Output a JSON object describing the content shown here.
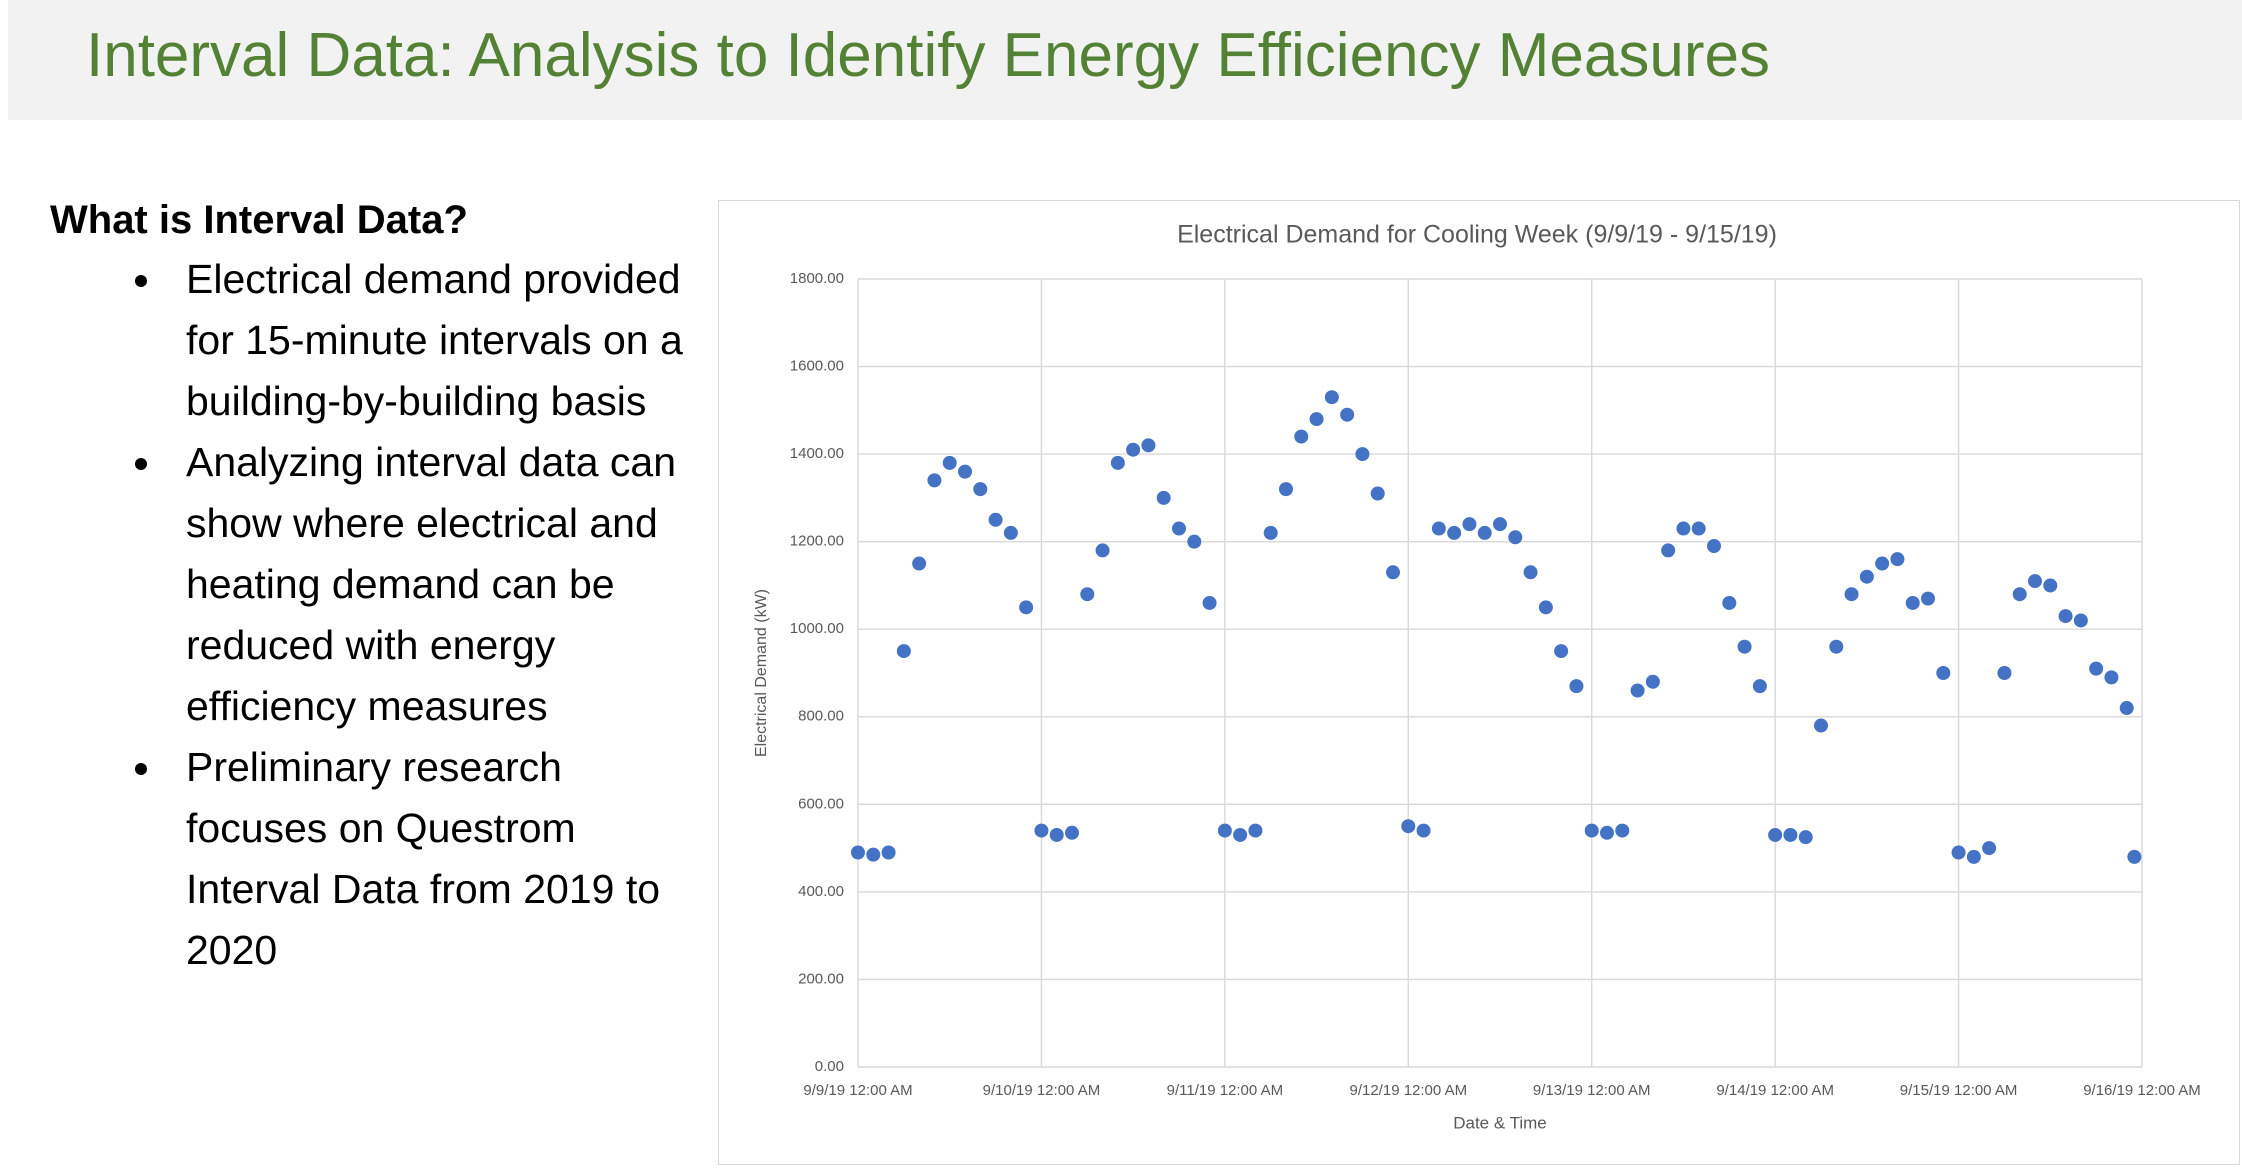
{
  "header": {
    "title": "Interval Data: Analysis to Identify Energy Efficiency Measures"
  },
  "body": {
    "heading": "What is Interval Data?",
    "bullets": [
      "Electrical demand provided for 15-minute intervals on a building-by-building basis",
      "Analyzing interval data can show where electrical and heating demand can be reduced with energy efficiency measures",
      "Preliminary research focuses on Questrom Interval Data from 2019 to 2020"
    ]
  },
  "chart_data": {
    "type": "scatter",
    "title": "Electrical Demand for Cooling Week (9/9/19 - 9/15/19)",
    "x_label": "Date & Time",
    "y_label": "Electrical Demand (kW)",
    "color": "#4472c4",
    "grid": true,
    "xlim": [
      "9/9/19 12:00 AM",
      "9/16/19 12:00 AM"
    ],
    "xticks": [
      "9/9/19 12:00 AM",
      "9/10/19 12:00 AM",
      "9/11/19 12:00 AM",
      "9/12/19 12:00 AM",
      "9/13/19 12:00 AM",
      "9/14/19 12:00 AM",
      "9/15/19 12:00 AM",
      "9/16/19 12:00 AM"
    ],
    "ylim": [
      0,
      1800
    ],
    "yticks": [
      {
        "value": 0,
        "label": "0.00"
      },
      {
        "value": 200,
        "label": "200.00"
      },
      {
        "value": 400,
        "label": "400.00"
      },
      {
        "value": 600,
        "label": "600.00"
      },
      {
        "value": 800,
        "label": "800.00"
      },
      {
        "value": 1000,
        "label": "1000.00"
      },
      {
        "value": 1200,
        "label": "1200.00"
      },
      {
        "value": 1400,
        "label": "1400.00"
      },
      {
        "value": 1600,
        "label": "1600.00"
      },
      {
        "value": 1800,
        "label": "1800.00"
      }
    ],
    "x": [
      "9/9/19 12:00 AM",
      "9/9/19 2:00 AM",
      "9/9/19 4:00 AM",
      "9/9/19 6:00 AM",
      "9/9/19 8:00 AM",
      "9/9/19 10:00 AM",
      "9/9/19 12:00 PM",
      "9/9/19 2:00 PM",
      "9/9/19 4:00 PM",
      "9/9/19 6:00 PM",
      "9/9/19 8:00 PM",
      "9/9/19 10:00 PM",
      "9/10/19 12:00 AM",
      "9/10/19 2:00 AM",
      "9/10/19 4:00 AM",
      "9/10/19 6:00 AM",
      "9/10/19 8:00 AM",
      "9/10/19 10:00 AM",
      "9/10/19 12:00 PM",
      "9/10/19 2:00 PM",
      "9/10/19 4:00 PM",
      "9/10/19 6:00 PM",
      "9/10/19 8:00 PM",
      "9/10/19 10:00 PM",
      "9/11/19 12:00 AM",
      "9/11/19 2:00 AM",
      "9/11/19 4:00 AM",
      "9/11/19 6:00 AM",
      "9/11/19 8:00 AM",
      "9/11/19 10:00 AM",
      "9/11/19 12:00 PM",
      "9/11/19 2:00 PM",
      "9/11/19 4:00 PM",
      "9/11/19 6:00 PM",
      "9/11/19 8:00 PM",
      "9/11/19 10:00 PM",
      "9/12/19 12:00 AM",
      "9/12/19 2:00 AM",
      "9/12/19 4:00 AM",
      "9/12/19 6:00 AM",
      "9/12/19 8:00 AM",
      "9/12/19 10:00 AM",
      "9/12/19 12:00 PM",
      "9/12/19 2:00 PM",
      "9/12/19 4:00 PM",
      "9/12/19 6:00 PM",
      "9/12/19 8:00 PM",
      "9/12/19 10:00 PM",
      "9/13/19 12:00 AM",
      "9/13/19 2:00 AM",
      "9/13/19 4:00 AM",
      "9/13/19 6:00 AM",
      "9/13/19 8:00 AM",
      "9/13/19 10:00 AM",
      "9/13/19 12:00 PM",
      "9/13/19 2:00 PM",
      "9/13/19 4:00 PM",
      "9/13/19 6:00 PM",
      "9/13/19 8:00 PM",
      "9/13/19 10:00 PM",
      "9/14/19 12:00 AM",
      "9/14/19 2:00 AM",
      "9/14/19 4:00 AM",
      "9/14/19 6:00 AM",
      "9/14/19 8:00 AM",
      "9/14/19 10:00 AM",
      "9/14/19 12:00 PM",
      "9/14/19 2:00 PM",
      "9/14/19 4:00 PM",
      "9/14/19 6:00 PM",
      "9/14/19 8:00 PM",
      "9/14/19 10:00 PM",
      "9/15/19 12:00 AM",
      "9/15/19 2:00 AM",
      "9/15/19 4:00 AM",
      "9/15/19 6:00 AM",
      "9/15/19 8:00 AM",
      "9/15/19 10:00 AM",
      "9/15/19 12:00 PM",
      "9/15/19 2:00 PM",
      "9/15/19 4:00 PM",
      "9/15/19 6:00 PM",
      "9/15/19 8:00 PM",
      "9/15/19 10:00 PM",
      "9/15/19 11:00 PM"
    ],
    "values": [
      490,
      485,
      490,
      950,
      1150,
      1340,
      1380,
      1360,
      1320,
      1250,
      1220,
      1050,
      540,
      530,
      535,
      1080,
      1180,
      1380,
      1410,
      1420,
      1300,
      1230,
      1200,
      1060,
      540,
      530,
      540,
      1220,
      1320,
      1440,
      1480,
      1530,
      1490,
      1400,
      1310,
      1130,
      550,
      540,
      1230,
      1220,
      1240,
      1220,
      1240,
      1210,
      1130,
      1050,
      950,
      870,
      540,
      535,
      540,
      860,
      880,
      1180,
      1230,
      1230,
      1190,
      1060,
      960,
      870,
      530,
      530,
      525,
      780,
      960,
      1080,
      1120,
      1150,
      1160,
      1060,
      1070,
      900,
      490,
      480,
      500,
      900,
      1080,
      1110,
      1100,
      1030,
      1020,
      910,
      890,
      820,
      480
    ]
  }
}
